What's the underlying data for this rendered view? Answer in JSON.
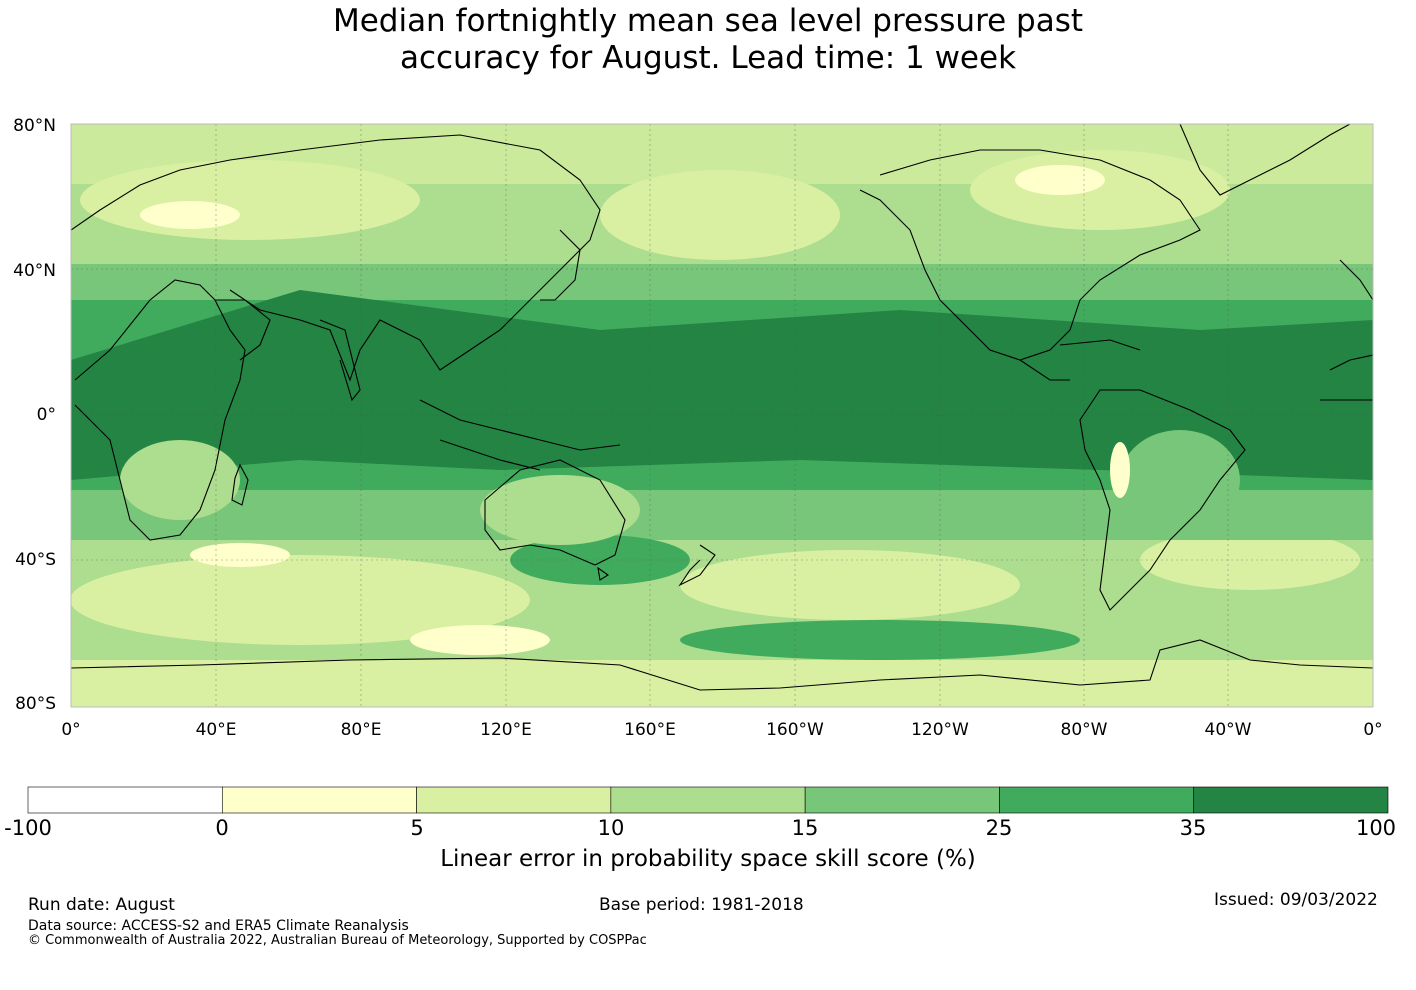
{
  "title": {
    "line1": "Median fortnightly mean sea level pressure past",
    "line2": "accuracy for August. Lead time: 1 week"
  },
  "map": {
    "lat_labels": [
      "80°N",
      "40°N",
      "0°",
      "40°S",
      "80°S"
    ],
    "lon_labels": [
      "0°",
      "40°E",
      "80°E",
      "120°E",
      "160°E",
      "160°W",
      "120°W",
      "80°W",
      "40°W",
      "0°"
    ],
    "grid": true,
    "projection": "equirectangular, centred on 180°"
  },
  "colorbar": {
    "ticks": [
      "-100",
      "0",
      "5",
      "10",
      "15",
      "25",
      "35",
      "100"
    ],
    "colors": [
      "#ffffff",
      "#ffffcc",
      "#d9f0a3",
      "#addd8e",
      "#78c679",
      "#41ab5d",
      "#238443"
    ],
    "label": "Linear error in probability space skill score (%)"
  },
  "footer": {
    "run_date": "Run date: August",
    "base_period": "Base period: 1981-2018",
    "issued": "Issued: 09/03/2022",
    "data_source": "Data source: ACCESS-S2 and ERA5 Climate Reanalysis",
    "copyright": "© Commonwealth of Australia 2022, Australian Bureau of Meteorology, Supported by COSPPac"
  }
}
